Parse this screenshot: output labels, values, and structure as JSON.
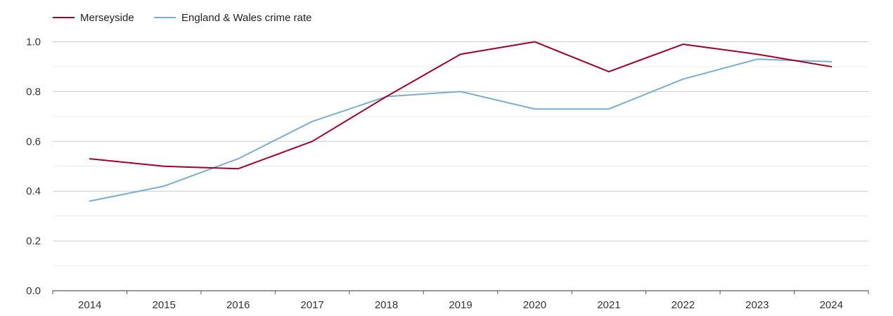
{
  "chart_data": {
    "type": "line",
    "title": "",
    "xlabel": "",
    "ylabel": "",
    "x": [
      "2014",
      "2015",
      "2016",
      "2017",
      "2018",
      "2019",
      "2020",
      "2021",
      "2022",
      "2023",
      "2024"
    ],
    "ylim": [
      0,
      1.0
    ],
    "yticks": [
      "0.0",
      "0.2",
      "0.4",
      "0.6",
      "0.8",
      "1.0"
    ],
    "grid": true,
    "legend_position": "top-left",
    "series": [
      {
        "name": "Merseyside",
        "color": "#a0002a",
        "values": [
          0.53,
          0.5,
          0.49,
          0.6,
          0.78,
          0.95,
          1.0,
          0.88,
          0.99,
          0.95,
          0.9
        ]
      },
      {
        "name": "England & Wales crime rate",
        "color": "#7aaed0",
        "values": [
          0.36,
          0.42,
          0.53,
          0.68,
          0.78,
          0.8,
          0.73,
          0.73,
          0.85,
          0.93,
          0.92
        ]
      }
    ]
  }
}
